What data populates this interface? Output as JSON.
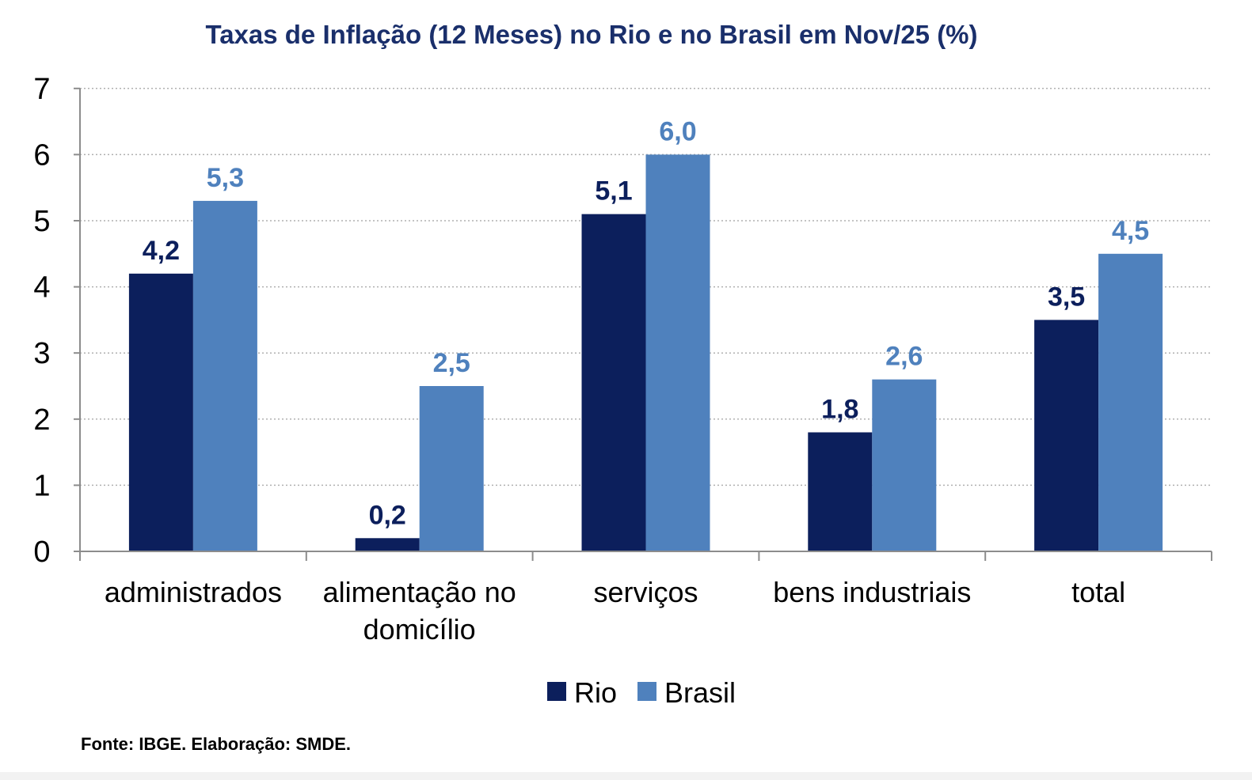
{
  "chart_data": {
    "type": "bar",
    "title": "Taxas de Inflação (12 Meses) no Rio e no Brasil em Nov/25 (%)",
    "categories": [
      [
        "administrados"
      ],
      [
        "alimentação no",
        "domicílio"
      ],
      [
        "serviços"
      ],
      [
        "bens industriais"
      ],
      [
        "total"
      ]
    ],
    "series": [
      {
        "name": "Rio",
        "color": "#0c1f5c",
        "values": [
          4.2,
          0.2,
          5.1,
          1.8,
          3.5
        ],
        "labels": [
          "4,2",
          "0,2",
          "5,1",
          "1,8",
          "3,5"
        ]
      },
      {
        "name": "Brasil",
        "color": "#4f81bd",
        "values": [
          5.3,
          2.5,
          6.0,
          2.6,
          4.5
        ],
        "labels": [
          "5,3",
          "2,5",
          "6,0",
          "2,6",
          "4,5"
        ]
      }
    ],
    "ylim": [
      0,
      7
    ],
    "yticks": [
      "0",
      "1",
      "2",
      "3",
      "4",
      "5",
      "6",
      "7"
    ],
    "xlabel": "",
    "ylabel": "",
    "grid": "horizontal dotted",
    "legend_position": "bottom-center"
  },
  "source_note": "Fonte: IBGE. Elaboração: SMDE."
}
